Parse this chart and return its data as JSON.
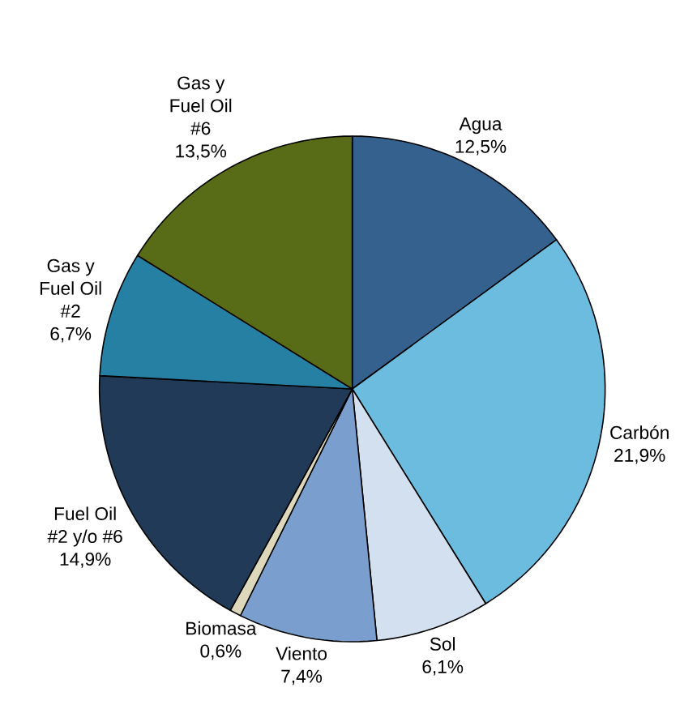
{
  "chart_data": {
    "type": "pie",
    "categories": [
      "Agua",
      "Carbón",
      "Sol",
      "Viento",
      "Biomasa",
      "Fuel Oil #2 y/o #6",
      "Gas y Fuel Oil #2",
      "Gas y Fuel Oil #6"
    ],
    "values": [
      12.5,
      21.9,
      6.1,
      7.4,
      0.6,
      14.9,
      6.7,
      13.5
    ],
    "value_labels": [
      "12,5%",
      "21,9%",
      "6,1%",
      "7,4%",
      "0,6%",
      "14,9%",
      "6,7%",
      "13,5%"
    ],
    "colors": [
      "#35618f",
      "#6bbcdf",
      "#d3e0ef",
      "#7a9fcf",
      "#ddd8bc",
      "#213a58",
      "#2680a3",
      "#586b16"
    ]
  }
}
